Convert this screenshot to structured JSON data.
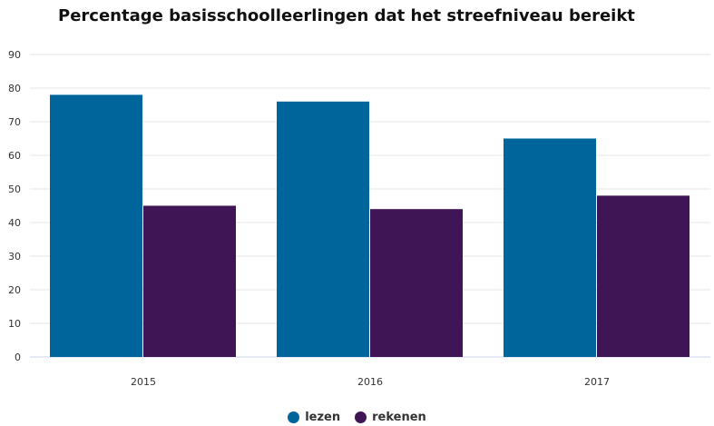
{
  "chart_data": {
    "type": "bar",
    "title": "Percentage basisschoolleerlingen dat het streefniveau bereikt",
    "xlabel": "",
    "ylabel": "",
    "categories": [
      "2015",
      "2016",
      "2017"
    ],
    "series": [
      {
        "name": "lezen",
        "values": [
          78,
          76,
          65
        ],
        "color": "#00659a"
      },
      {
        "name": "rekenen",
        "values": [
          45,
          44,
          48
        ],
        "color": "#3f1555"
      }
    ],
    "ylim": [
      0,
      90
    ],
    "yticks": [
      "0",
      "10",
      "20",
      "30",
      "40",
      "50",
      "60",
      "70",
      "80",
      "90"
    ],
    "grid": true,
    "legend_position": "bottom-center"
  }
}
